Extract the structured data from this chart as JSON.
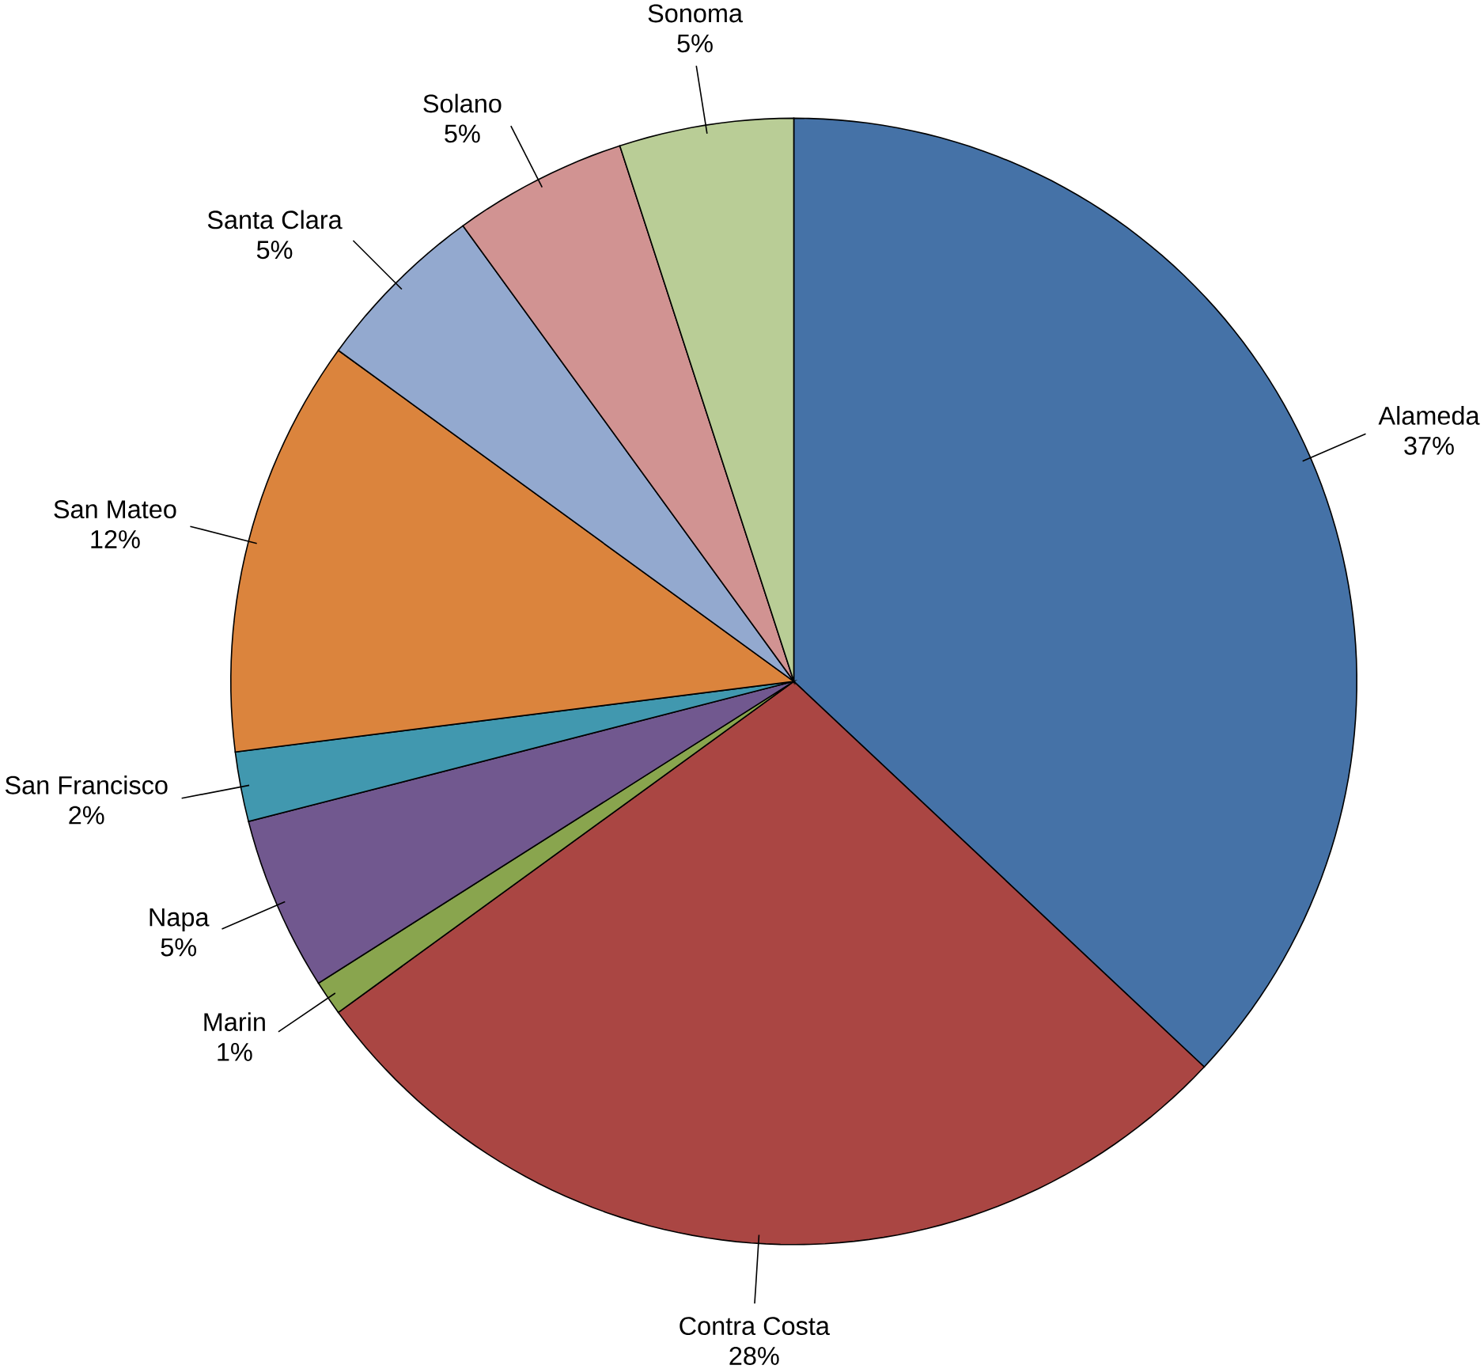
{
  "chart_data": {
    "type": "pie",
    "categories": [
      "Alameda",
      "Contra Costa",
      "Marin",
      "Napa",
      "San Francisco",
      "San Mateo",
      "Santa Clara",
      "Solano",
      "Sonoma"
    ],
    "values": [
      37,
      28,
      1,
      5,
      2,
      12,
      5,
      5,
      5
    ],
    "value_labels": [
      "37%",
      "28%",
      "1%",
      "5%",
      "2%",
      "12%",
      "5%",
      "5%",
      "5%"
    ],
    "colors": [
      "#4572a7",
      "#aa4643",
      "#89a54e",
      "#71588f",
      "#4198af",
      "#db843d",
      "#93a9cf",
      "#d19392",
      "#b9cd96"
    ]
  }
}
